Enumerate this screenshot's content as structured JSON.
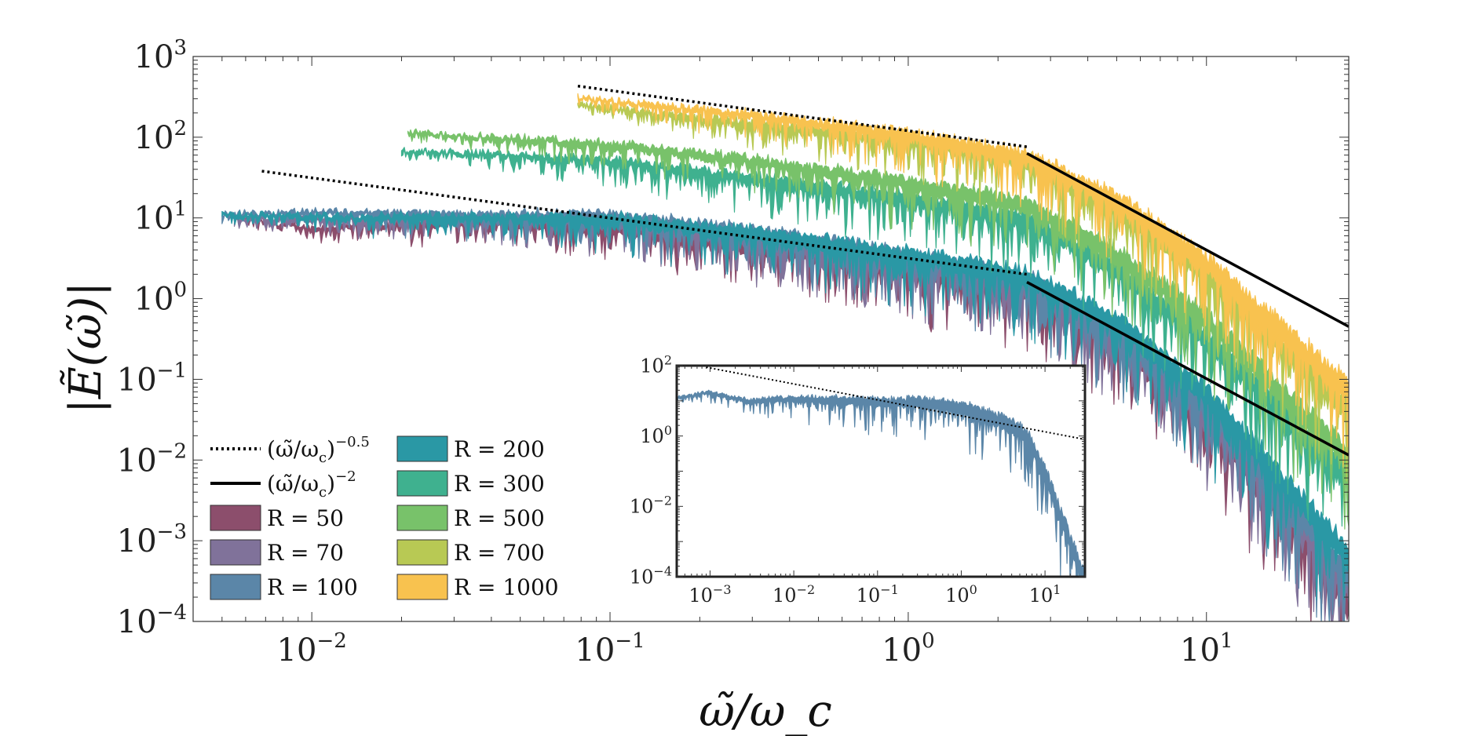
{
  "chart_data": [
    {
      "type": "line",
      "xscale": "log",
      "yscale": "log",
      "xlim": [
        0.004,
        30
      ],
      "ylim": [
        0.0001,
        1000
      ],
      "xlabel": "ω̃/ω_c",
      "ylabel": "|Ẽ(ω̃)|",
      "x_tick_labels": [
        {
          "base": "10",
          "exp": "−2",
          "value": 0.01
        },
        {
          "base": "10",
          "exp": "−1",
          "value": 0.1
        },
        {
          "base": "10",
          "exp": "0",
          "value": 1
        },
        {
          "base": "10",
          "exp": "1",
          "value": 10
        }
      ],
      "y_tick_labels": [
        {
          "base": "10",
          "exp": "3",
          "value": 1000
        },
        {
          "base": "10",
          "exp": "2",
          "value": 100
        },
        {
          "base": "10",
          "exp": "1",
          "value": 10
        },
        {
          "base": "10",
          "exp": "0",
          "value": 1
        },
        {
          "base": "10",
          "exp": "−1",
          "value": 0.1
        },
        {
          "base": "10",
          "exp": "−2",
          "value": 0.01
        },
        {
          "base": "10",
          "exp": "−3",
          "value": 0.001
        },
        {
          "base": "10",
          "exp": "−4",
          "value": 0.0001
        }
      ],
      "legend_placement": "bottom-left",
      "reference_lines": [
        {
          "name": "(ω̃/ω_c)^−0.5",
          "style": "dotted",
          "color": "#000000",
          "x": [
            0.0068,
            2.5
          ],
          "y": [
            38,
            2.0
          ]
        },
        {
          "name": "(ω̃/ω_c)^−0.5",
          "style": "dotted",
          "color": "#000000",
          "x": [
            0.078,
            2.5
          ],
          "y": [
            430,
            76
          ]
        },
        {
          "name": "(ω̃/ω_c)^−2",
          "style": "solid",
          "color": "#000000",
          "x": [
            2.5,
            30
          ],
          "y": [
            1.6,
            0.0115
          ]
        },
        {
          "name": "(ω̃/ω_c)^−2",
          "style": "solid",
          "color": "#000000",
          "x": [
            2.5,
            30
          ],
          "y": [
            63,
            0.45
          ]
        }
      ],
      "series": [
        {
          "name": "R = 50",
          "color": "#8c4e6c",
          "x_start": 0.006,
          "x": [
            0.006,
            0.01,
            0.03,
            0.1,
            0.3,
            1,
            2.5,
            5,
            10,
            20,
            30
          ],
          "y": [
            9.5,
            7.5,
            9.0,
            8.0,
            4.5,
            2.4,
            1.3,
            0.3,
            0.035,
            0.0016,
            0.0002
          ]
        },
        {
          "name": "R = 70",
          "color": "#80729a",
          "x_start": 0.0055,
          "x": [
            0.0055,
            0.01,
            0.03,
            0.1,
            0.3,
            1,
            2.5,
            5,
            10,
            20,
            30
          ],
          "y": [
            10,
            9.5,
            10,
            9.5,
            5.5,
            2.8,
            1.5,
            0.34,
            0.04,
            0.002,
            0.0003
          ]
        },
        {
          "name": "R = 100",
          "color": "#5b86a8",
          "x_start": 0.005,
          "x": [
            0.005,
            0.01,
            0.03,
            0.1,
            0.3,
            1,
            2.5,
            5,
            10,
            20,
            30
          ],
          "y": [
            11,
            12,
            11,
            11,
            7.0,
            3.5,
            1.8,
            0.42,
            0.05,
            0.0025,
            0.0004
          ]
        },
        {
          "name": "R = 200",
          "color": "#2a98a5",
          "x_start": 0.005,
          "x": [
            0.005,
            0.01,
            0.03,
            0.1,
            0.3,
            1,
            2.5,
            5,
            10,
            20,
            30
          ],
          "y": [
            11,
            10.5,
            10.5,
            10,
            6.8,
            3.6,
            2.0,
            0.55,
            0.07,
            0.004,
            0.0007
          ]
        },
        {
          "name": "R = 300",
          "color": "#3fb18f",
          "x_start": 0.02,
          "x": [
            0.02,
            0.05,
            0.1,
            0.3,
            1,
            2.5,
            5,
            10,
            20,
            30
          ],
          "y": [
            68,
            60,
            52,
            32,
            18,
            10,
            2.5,
            0.35,
            0.03,
            0.007
          ]
        },
        {
          "name": "R = 500",
          "color": "#78c26a",
          "x_start": 0.021,
          "x": [
            0.021,
            0.05,
            0.1,
            0.3,
            1,
            2.5,
            5,
            10,
            20,
            30
          ],
          "y": [
            115,
            95,
            82,
            52,
            28,
            15,
            3.8,
            0.6,
            0.05,
            0.012
          ]
        },
        {
          "name": "R = 700",
          "color": "#b8c954",
          "x_start": 0.078,
          "x": [
            0.078,
            0.1,
            0.3,
            1,
            2.5,
            5,
            10,
            20,
            30
          ],
          "y": [
            260,
            230,
            150,
            95,
            52,
            14,
            2.2,
            0.2,
            0.05
          ]
        },
        {
          "name": "R = 1000",
          "color": "#f8c24f",
          "x_start": 0.078,
          "x": [
            0.078,
            0.1,
            0.3,
            1,
            2.5,
            5,
            10,
            20,
            30
          ],
          "y": [
            310,
            280,
            190,
            110,
            60,
            18,
            3.0,
            0.3,
            0.08
          ]
        }
      ]
    },
    {
      "type": "line",
      "xscale": "log",
      "yscale": "log",
      "xlim": [
        0.0004,
        30
      ],
      "ylim": [
        0.0001,
        100
      ],
      "x_tick_labels": [
        {
          "base": "10",
          "exp": "−3",
          "value": 0.001
        },
        {
          "base": "10",
          "exp": "−2",
          "value": 0.01
        },
        {
          "base": "10",
          "exp": "−1",
          "value": 0.1
        },
        {
          "base": "10",
          "exp": "0",
          "value": 1
        },
        {
          "base": "10",
          "exp": "1",
          "value": 10
        }
      ],
      "y_tick_labels": [
        {
          "base": "10",
          "exp": "2",
          "value": 100
        },
        {
          "base": "10",
          "exp": "0",
          "value": 1
        },
        {
          "base": "10",
          "exp": "−2",
          "value": 0.01
        },
        {
          "base": "10",
          "exp": "−4",
          "value": 0.0001
        }
      ],
      "reference_lines": [
        {
          "style": "dotted",
          "color": "#000000",
          "x": [
            0.0009,
            30
          ],
          "y": [
            90,
            0.8
          ]
        }
      ],
      "series": [
        {
          "color": "#5b86a8",
          "x": [
            0.0004,
            0.001,
            0.003,
            0.01,
            0.03,
            0.1,
            0.3,
            1,
            3,
            6,
            10,
            20,
            30
          ],
          "y": [
            12,
            18,
            10,
            12,
            11,
            10,
            10,
            7,
            3,
            1.2,
            0.1,
            0.0012,
            0.0001
          ]
        }
      ]
    }
  ],
  "legend": {
    "col1": [
      {
        "kind": "dotted",
        "label": "(ω̃/ω_c)^−0.5",
        "base": "(ω̃/ω",
        "sub": "c",
        "close": ")",
        "sup": "−0.5"
      },
      {
        "kind": "solid",
        "label": "(ω̃/ω_c)^−2",
        "base": "(ω̃/ω",
        "sub": "c",
        "close": ")",
        "sup": "−2"
      },
      {
        "kind": "patch",
        "label": "R = 50",
        "color": "#8c4e6c"
      },
      {
        "kind": "patch",
        "label": "R = 70",
        "color": "#80729a"
      },
      {
        "kind": "patch",
        "label": "R = 100",
        "color": "#5b86a8"
      }
    ],
    "col2": [
      {
        "kind": "patch",
        "label": "R = 200",
        "color": "#2a98a5"
      },
      {
        "kind": "patch",
        "label": "R = 300",
        "color": "#3fb18f"
      },
      {
        "kind": "patch",
        "label": "R = 500",
        "color": "#78c26a"
      },
      {
        "kind": "patch",
        "label": "R = 700",
        "color": "#b8c954"
      },
      {
        "kind": "patch",
        "label": "R = 1000",
        "color": "#f8c24f"
      }
    ]
  }
}
